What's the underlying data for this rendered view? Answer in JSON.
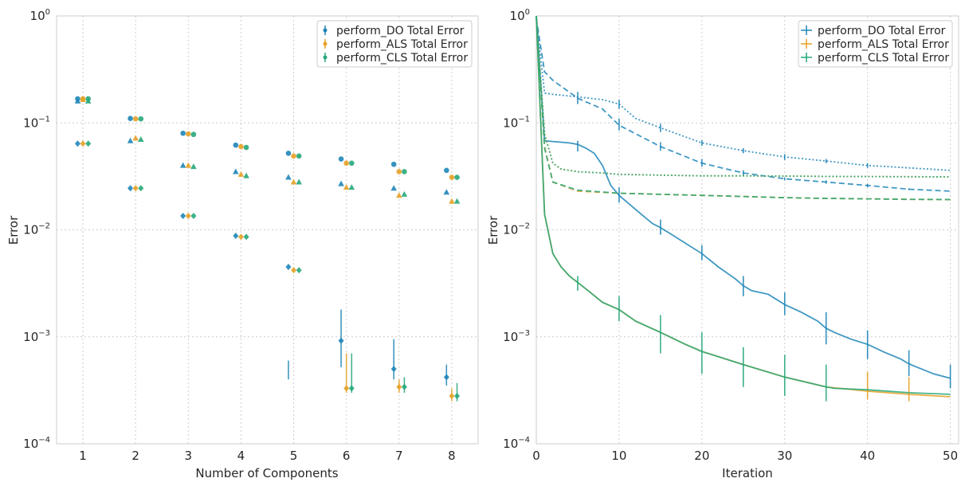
{
  "colors": {
    "do": "#1f86b8",
    "als": "#e6a126",
    "cls": "#26a87a",
    "grid": "#cccccc",
    "frame": "#cccccc"
  },
  "chart_data": [
    {
      "type": "scatter",
      "xlabel": "Number of Components",
      "ylabel": "Error",
      "yscale": "log",
      "ylim": [
        0.0001,
        1
      ],
      "xlim": [
        0.5,
        8.5
      ],
      "xticks": [
        "1",
        "2",
        "3",
        "4",
        "5",
        "6",
        "7",
        "8"
      ],
      "yticks": [
        {
          "base": "10",
          "exp": "0"
        },
        {
          "base": "10",
          "exp": "−1"
        },
        {
          "base": "10",
          "exp": "−2"
        },
        {
          "base": "10",
          "exp": "−3"
        },
        {
          "base": "10",
          "exp": "−4"
        }
      ],
      "grid": true,
      "legend_position": "top-right",
      "legend": [
        "perform_DO Total Error",
        "perform_ALS Total Error",
        "perform_CLS Total Error"
      ],
      "x": [
        1,
        2,
        3,
        4,
        5,
        6,
        7,
        8
      ],
      "series": [
        {
          "name": "perform_DO Total Error",
          "color_key": "do",
          "offset": -0.1,
          "circle": [
            0.168,
            0.11,
            0.08,
            0.062,
            0.052,
            0.046,
            0.041,
            0.036
          ],
          "triangle": [
            0.16,
            0.068,
            0.04,
            0.035,
            0.031,
            0.027,
            0.0245,
            0.0225
          ],
          "diamond": [
            0.064,
            0.0245,
            0.0135,
            0.0088,
            0.0045,
            0.00092,
            0.0005,
            0.00042
          ],
          "diamond_err": [
            [
              7e-05,
              7e-05
            ],
            [
              0.0002,
              0.0002
            ],
            [
              0.0001,
              0.0001
            ],
            [
              0.0001,
              0.0001
            ],
            [
              0.0004,
              0.0006
            ],
            [
              0.00052,
              0.0018
            ],
            [
              0.0004,
              0.00095
            ],
            [
              0.00035,
              0.00055
            ]
          ]
        },
        {
          "name": "perform_ALS Total Error",
          "color_key": "als",
          "offset": 0.0,
          "circle": [
            0.168,
            0.109,
            0.079,
            0.06,
            0.049,
            0.042,
            0.035,
            0.031
          ],
          "triangle": [
            0.165,
            0.072,
            0.04,
            0.033,
            0.028,
            0.025,
            0.021,
            0.0185
          ],
          "diamond": [
            0.064,
            0.0245,
            0.0135,
            0.0086,
            0.0042,
            0.00033,
            0.00034,
            0.00028
          ],
          "diamond_err": [
            [
              7e-05,
              7e-05
            ],
            [
              0.0002,
              0.0002
            ],
            [
              0.0001,
              0.0001
            ],
            [
              0.0001,
              0.0001
            ],
            [
              0.0001,
              0.0001
            ],
            [
              0.0003,
              0.0007
            ],
            [
              0.0003,
              0.0004
            ],
            [
              0.00025,
              0.00033
            ]
          ]
        },
        {
          "name": "perform_CLS Total Error",
          "color_key": "cls",
          "offset": 0.1,
          "circle": [
            0.168,
            0.109,
            0.078,
            0.059,
            0.049,
            0.042,
            0.035,
            0.031
          ],
          "triangle": [
            0.16,
            0.07,
            0.039,
            0.032,
            0.028,
            0.025,
            0.0215,
            0.0185
          ],
          "diamond": [
            0.064,
            0.0245,
            0.0135,
            0.0086,
            0.0042,
            0.00033,
            0.00034,
            0.00028
          ],
          "diamond_err": [
            [
              7e-05,
              7e-05
            ],
            [
              0.0002,
              0.0002
            ],
            [
              0.0001,
              0.0001
            ],
            [
              0.0001,
              0.0001
            ],
            [
              0.0001,
              0.0001
            ],
            [
              0.0003,
              0.0007
            ],
            [
              0.0003,
              0.00042
            ],
            [
              0.00025,
              0.00037
            ]
          ]
        }
      ]
    },
    {
      "type": "line",
      "xlabel": "Iteration",
      "ylabel": "Error",
      "yscale": "log",
      "ylim": [
        0.0001,
        1
      ],
      "xlim": [
        0,
        51
      ],
      "xticks": [
        "0",
        "10",
        "20",
        "30",
        "40",
        "50"
      ],
      "xtick_values": [
        0,
        10,
        20,
        30,
        40,
        50
      ],
      "yticks": [
        {
          "base": "10",
          "exp": "0"
        },
        {
          "base": "10",
          "exp": "−1"
        },
        {
          "base": "10",
          "exp": "−2"
        },
        {
          "base": "10",
          "exp": "−3"
        },
        {
          "base": "10",
          "exp": "−4"
        }
      ],
      "grid": true,
      "legend_position": "top-right",
      "legend": [
        "perform_DO Total Error",
        "perform_ALS Total Error",
        "perform_CLS Total Error"
      ],
      "lines": [
        {
          "name": "perform_DO Total Error",
          "color_key": "do",
          "style": "solid",
          "x": [
            0,
            1,
            2,
            3,
            4,
            5,
            6,
            7,
            8,
            9,
            10,
            12,
            14,
            15,
            16,
            18,
            20,
            22,
            24,
            25,
            26,
            28,
            30,
            32,
            34,
            35,
            36,
            38,
            40,
            42,
            44,
            45,
            46,
            48,
            50
          ],
          "y": [
            1.0,
            0.068,
            0.067,
            0.066,
            0.065,
            0.063,
            0.058,
            0.052,
            0.04,
            0.026,
            0.021,
            0.0155,
            0.0115,
            0.0105,
            0.0094,
            0.0075,
            0.006,
            0.0045,
            0.0035,
            0.003,
            0.0027,
            0.0025,
            0.002,
            0.0017,
            0.0014,
            0.0012,
            0.0011,
            0.00095,
            0.00085,
            0.00072,
            0.00062,
            0.00056,
            0.00052,
            0.00045,
            0.00041
          ],
          "err_x": [
            5,
            10,
            15,
            20,
            25,
            30,
            35,
            40,
            45,
            50
          ],
          "err_lo": [
            0.054,
            0.018,
            0.009,
            0.0052,
            0.0024,
            0.0016,
            0.00085,
            0.00062,
            0.00043,
            0.00033
          ],
          "err_hi": [
            0.068,
            0.025,
            0.0125,
            0.0072,
            0.0037,
            0.0026,
            0.0017,
            0.00115,
            0.00075,
            0.00055
          ]
        },
        {
          "name": "perform_DO Total Error",
          "color_key": "do",
          "style": "dashed",
          "x": [
            0,
            1,
            2,
            3,
            5,
            8,
            10,
            15,
            20,
            25,
            30,
            35,
            40,
            45,
            50
          ],
          "y": [
            0.95,
            0.3,
            0.25,
            0.22,
            0.17,
            0.135,
            0.095,
            0.06,
            0.042,
            0.034,
            0.03,
            0.028,
            0.026,
            0.024,
            0.023
          ],
          "err_x": [
            10,
            15,
            20,
            25,
            30,
            35,
            40,
            45
          ],
          "err_lo": [
            0.085,
            0.055,
            0.039,
            0.032,
            0.029,
            0.027,
            0.025,
            0.0235
          ],
          "err_hi": [
            0.11,
            0.066,
            0.046,
            0.036,
            0.031,
            0.029,
            0.027,
            0.0245
          ]
        },
        {
          "name": "perform_DO Total Error",
          "color_key": "do",
          "style": "dotted",
          "x": [
            0,
            1,
            2,
            5,
            8,
            10,
            12,
            15,
            20,
            25,
            30,
            35,
            40,
            45,
            50
          ],
          "y": [
            0.95,
            0.19,
            0.185,
            0.175,
            0.165,
            0.15,
            0.11,
            0.09,
            0.065,
            0.055,
            0.048,
            0.044,
            0.04,
            0.038,
            0.036
          ],
          "err_x": [
            5,
            10,
            15,
            20,
            25,
            30,
            35,
            40
          ],
          "err_lo": [
            0.15,
            0.135,
            0.082,
            0.061,
            0.052,
            0.045,
            0.042,
            0.038
          ],
          "err_hi": [
            0.195,
            0.165,
            0.098,
            0.069,
            0.058,
            0.051,
            0.046,
            0.042
          ]
        },
        {
          "name": "perform_ALS Total Error",
          "color_key": "als",
          "style": "solid",
          "x": [
            0,
            1,
            2,
            3,
            4,
            6,
            8,
            10,
            12,
            15,
            18,
            20,
            25,
            30,
            35,
            40,
            45,
            50
          ],
          "y": [
            1.0,
            0.014,
            0.006,
            0.0045,
            0.0037,
            0.0028,
            0.0021,
            0.0018,
            0.0014,
            0.0011,
            0.00085,
            0.00073,
            0.00055,
            0.00042,
            0.00034,
            0.00031,
            0.00029,
            0.000275
          ],
          "err_x": [
            40,
            45
          ],
          "err_lo": [
            0.00026,
            0.00025
          ],
          "err_hi": [
            0.00047,
            0.00042
          ]
        },
        {
          "name": "perform_ALS Total Error",
          "color_key": "als",
          "style": "dashed",
          "x": [
            0,
            1,
            2,
            5,
            10,
            15,
            20,
            25,
            30,
            35,
            40,
            45,
            50
          ],
          "y": [
            1.0,
            0.06,
            0.028,
            0.023,
            0.022,
            0.0215,
            0.021,
            0.0205,
            0.02,
            0.0197,
            0.0195,
            0.0193,
            0.0192
          ],
          "err_x": [],
          "err_lo": [],
          "err_hi": []
        },
        {
          "name": "perform_ALS Total Error",
          "color_key": "als",
          "style": "dotted",
          "x": [
            0,
            1,
            2,
            3,
            5,
            8,
            10,
            15,
            20,
            25,
            30,
            35,
            40,
            45,
            50
          ],
          "y": [
            1.0,
            0.08,
            0.042,
            0.037,
            0.035,
            0.034,
            0.033,
            0.0325,
            0.032,
            0.032,
            0.0318,
            0.0316,
            0.0315,
            0.0314,
            0.0313
          ],
          "err_x": [],
          "err_lo": [],
          "err_hi": []
        },
        {
          "name": "perform_CLS Total Error",
          "color_key": "cls",
          "style": "solid",
          "x": [
            0,
            1,
            2,
            3,
            4,
            6,
            8,
            10,
            12,
            15,
            18,
            20,
            25,
            30,
            35,
            36,
            40,
            45,
            50
          ],
          "y": [
            1.0,
            0.014,
            0.006,
            0.0045,
            0.0037,
            0.0028,
            0.0021,
            0.0018,
            0.0014,
            0.0011,
            0.00085,
            0.00073,
            0.00055,
            0.00042,
            0.00034,
            0.00033,
            0.00032,
            0.0003,
            0.00029
          ],
          "err_x": [
            5,
            10,
            15,
            20,
            25,
            30,
            35
          ],
          "err_lo": [
            0.0027,
            0.0014,
            0.0007,
            0.00045,
            0.00034,
            0.00028,
            0.00025
          ],
          "err_hi": [
            0.0037,
            0.0024,
            0.0016,
            0.0011,
            0.0008,
            0.00068,
            0.00055
          ]
        },
        {
          "name": "perform_CLS Total Error",
          "color_key": "cls",
          "style": "dashed",
          "x": [
            0,
            1,
            2,
            5,
            10,
            15,
            20,
            25,
            30,
            35,
            40,
            45,
            50
          ],
          "y": [
            1.0,
            0.058,
            0.028,
            0.0235,
            0.022,
            0.0215,
            0.021,
            0.0205,
            0.02,
            0.0197,
            0.0195,
            0.0193,
            0.0192
          ],
          "err_x": [],
          "err_lo": [],
          "err_hi": []
        },
        {
          "name": "perform_CLS Total Error",
          "color_key": "cls",
          "style": "dotted",
          "x": [
            0,
            1,
            2,
            3,
            5,
            8,
            10,
            15,
            20,
            25,
            30,
            35,
            40,
            45,
            50
          ],
          "y": [
            1.0,
            0.078,
            0.042,
            0.037,
            0.035,
            0.034,
            0.033,
            0.0325,
            0.032,
            0.032,
            0.0318,
            0.0316,
            0.0315,
            0.0314,
            0.0313
          ],
          "err_x": [],
          "err_lo": [],
          "err_hi": []
        }
      ]
    }
  ]
}
